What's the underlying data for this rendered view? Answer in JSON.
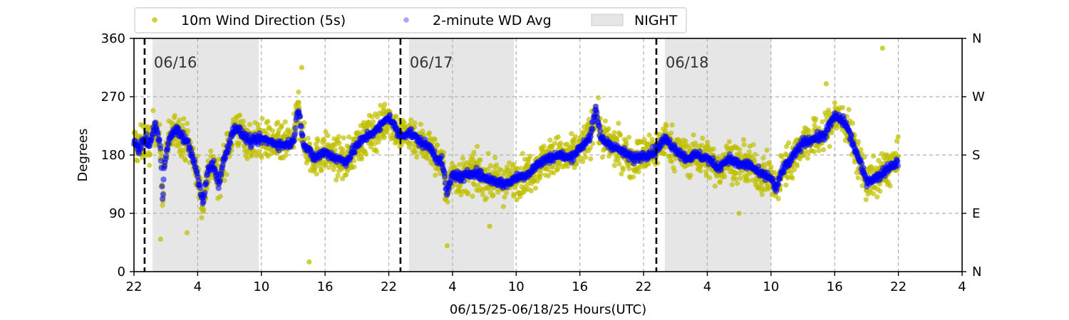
{
  "chart_data": {
    "type": "scatter",
    "title": "",
    "xlabel": "06/15/25-06/18/25  Hours(UTC)",
    "ylabel": "Degrees",
    "x_range_hours": [
      0,
      78
    ],
    "ylim": [
      0,
      360
    ],
    "x_ticks": [
      {
        "hour": 0,
        "label": "22"
      },
      {
        "hour": 6,
        "label": "4"
      },
      {
        "hour": 12,
        "label": "10"
      },
      {
        "hour": 18,
        "label": "16"
      },
      {
        "hour": 24,
        "label": "22"
      },
      {
        "hour": 30,
        "label": "4"
      },
      {
        "hour": 36,
        "label": "10"
      },
      {
        "hour": 42,
        "label": "16"
      },
      {
        "hour": 48,
        "label": "22"
      },
      {
        "hour": 54,
        "label": "4"
      },
      {
        "hour": 60,
        "label": "10"
      },
      {
        "hour": 66,
        "label": "16"
      },
      {
        "hour": 72,
        "label": "22"
      },
      {
        "hour": 78,
        "label": "4"
      }
    ],
    "y_ticks": [
      0,
      90,
      180,
      270,
      360
    ],
    "y2_ticks": [
      {
        "value": 0,
        "label": "N"
      },
      {
        "value": 90,
        "label": "E"
      },
      {
        "value": 180,
        "label": "S"
      },
      {
        "value": 270,
        "label": "W"
      },
      {
        "value": 360,
        "label": "N"
      }
    ],
    "grid": true,
    "legend_placement": "top-left, above the plot",
    "legend": [
      {
        "label": "10m Wind Direction (5s)",
        "kind": "marker",
        "color": "#bfbf00"
      },
      {
        "label": "2-minute WD Avg",
        "kind": "marker",
        "color": "#0000ff"
      },
      {
        "label": "NIGHT",
        "kind": "patch",
        "color": "#e6e6e6"
      }
    ],
    "night_periods": [
      {
        "start": 1.75,
        "end": 11.75
      },
      {
        "start": 25.9,
        "end": 35.8
      },
      {
        "start": 50.0,
        "end": 60.0
      }
    ],
    "day_boundaries": [
      {
        "hour": 1.0,
        "label": "06/16"
      },
      {
        "hour": 25.1,
        "label": "06/17"
      },
      {
        "hour": 49.2,
        "label": "06/18"
      }
    ],
    "series": [
      {
        "name": "2-minute WD Avg",
        "color": "#0000ff",
        "x": [
          0,
          0.5,
          1,
          1.5,
          2,
          2.5,
          2.6,
          2.7,
          2.8,
          3,
          3.5,
          4,
          4.5,
          5,
          5.5,
          6,
          6.5,
          7,
          7.5,
          8,
          8.5,
          9,
          9.5,
          10,
          11,
          12,
          13,
          14,
          15,
          15.5,
          16,
          17,
          18,
          19,
          20,
          21,
          22,
          23,
          24,
          25,
          26,
          27,
          28,
          28.5,
          29,
          29.5,
          30,
          31,
          32,
          33,
          34,
          35,
          36,
          37,
          38,
          39,
          40,
          41,
          42,
          43,
          43.5,
          44,
          45,
          46,
          47,
          48,
          49,
          50,
          51,
          52,
          53,
          54,
          55,
          56,
          57,
          58,
          59,
          60,
          60.5,
          61,
          62,
          63,
          64,
          65,
          66,
          67,
          68,
          69,
          70,
          71,
          72
        ],
        "y": [
          200,
          190,
          205,
          195,
          230,
          190,
          150,
          110,
          150,
          185,
          210,
          220,
          210,
          200,
          180,
          145,
          105,
          160,
          165,
          135,
          175,
          200,
          225,
          215,
          200,
          205,
          200,
          195,
          200,
          255,
          195,
          175,
          185,
          175,
          170,
          195,
          210,
          220,
          240,
          210,
          215,
          200,
          190,
          175,
          170,
          120,
          150,
          145,
          155,
          145,
          140,
          135,
          145,
          150,
          165,
          175,
          180,
          175,
          190,
          210,
          250,
          205,
          195,
          185,
          175,
          180,
          185,
          205,
          190,
          175,
          180,
          175,
          160,
          175,
          165,
          165,
          150,
          145,
          125,
          155,
          175,
          200,
          205,
          210,
          240,
          230,
          185,
          140,
          145,
          160,
          170
        ]
      },
      {
        "name": "10m Wind Direction (5s)",
        "color": "#bfbf00",
        "outliers": [
          {
            "x": 16.5,
            "y": 15
          },
          {
            "x": 15.8,
            "y": 315
          },
          {
            "x": 2.5,
            "y": 50
          },
          {
            "x": 29.5,
            "y": 40
          },
          {
            "x": 33.5,
            "y": 70
          },
          {
            "x": 70.5,
            "y": 345
          },
          {
            "x": 65.2,
            "y": 290
          },
          {
            "x": 57,
            "y": 90
          },
          {
            "x": 5,
            "y": 60
          }
        ]
      }
    ]
  }
}
